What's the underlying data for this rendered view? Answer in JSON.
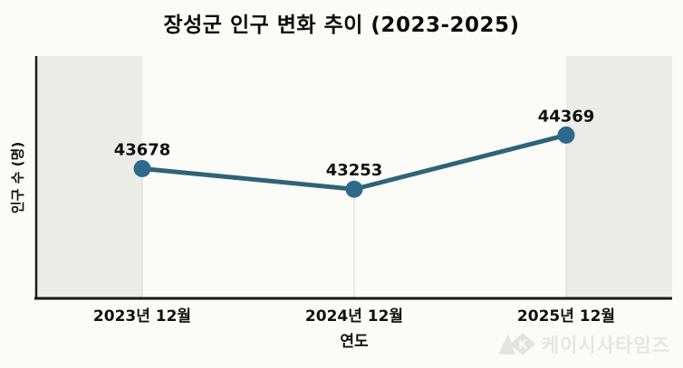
{
  "title": "장성군 인구 변화 추이 (2023-2025)",
  "watermark": {
    "text": "케이시사타임즈"
  },
  "chart_data": {
    "type": "line",
    "title": "장성군 인구 변화 추이 (2023-2025)",
    "xlabel": "연도",
    "ylabel": "인구 수 (명)",
    "categories": [
      "2023년 12월",
      "2024년 12월",
      "2025년 12월"
    ],
    "series": [
      {
        "name": "인구 수",
        "values": [
          43678,
          43253,
          44369
        ]
      }
    ],
    "data_labels": [
      "43678",
      "43253",
      "44369"
    ],
    "ylim": [
      41000,
      46000
    ],
    "grid": false,
    "legend": false,
    "colors": {
      "line": "#2e6478",
      "marker": "#2d6a8c",
      "band": "#ebebe7",
      "drop_line": "#d9d9d3",
      "axis": "#1a1a1a",
      "label": "#111111"
    }
  }
}
